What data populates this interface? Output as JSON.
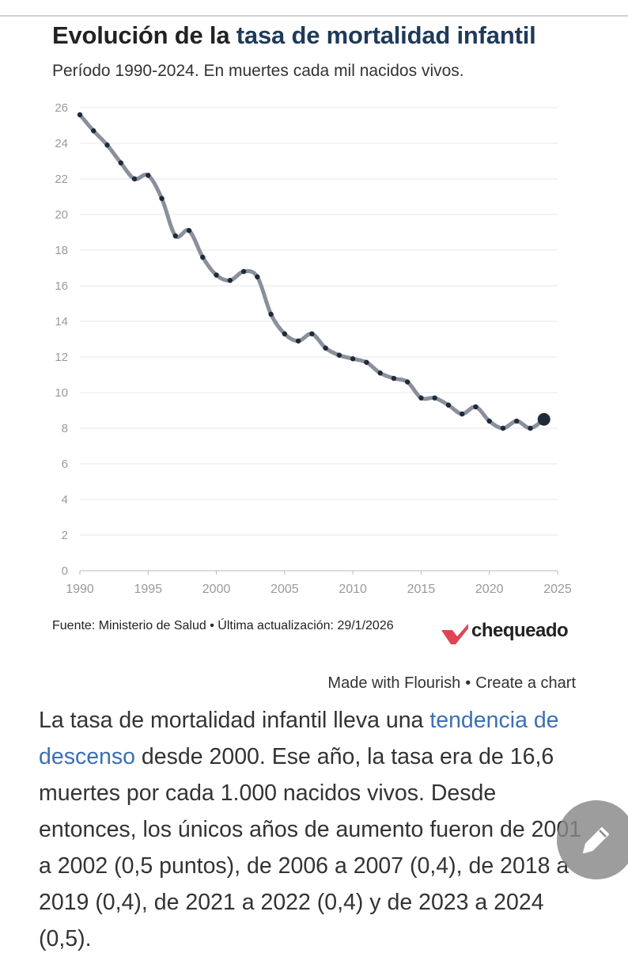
{
  "chart_data": {
    "type": "line",
    "title_prefix": "Evolución de la ",
    "title_highlight": "tasa de mortalidad infantil",
    "subtitle": "Período 1990-2024. En muertes cada mil nacidos vivos.",
    "x": [
      1990,
      1991,
      1992,
      1993,
      1994,
      1995,
      1996,
      1997,
      1998,
      1999,
      2000,
      2001,
      2002,
      2003,
      2004,
      2005,
      2006,
      2007,
      2008,
      2009,
      2010,
      2011,
      2012,
      2013,
      2014,
      2015,
      2016,
      2017,
      2018,
      2019,
      2020,
      2021,
      2022,
      2023,
      2024
    ],
    "y": [
      25.6,
      24.7,
      23.9,
      22.9,
      22.0,
      22.2,
      20.9,
      18.8,
      19.1,
      17.6,
      16.6,
      16.3,
      16.8,
      16.5,
      14.4,
      13.3,
      12.9,
      13.3,
      12.5,
      12.1,
      11.9,
      11.7,
      11.1,
      10.8,
      10.6,
      9.7,
      9.7,
      9.3,
      8.8,
      9.2,
      8.4,
      8.0,
      8.4,
      8.0,
      8.5
    ],
    "xlim": [
      1990,
      2025
    ],
    "ylim": [
      0,
      26
    ],
    "x_ticks": [
      "1990",
      "1995",
      "2000",
      "2005",
      "2010",
      "2015",
      "2020",
      "2025"
    ],
    "y_ticks": [
      "0",
      "2",
      "4",
      "6",
      "8",
      "10",
      "12",
      "14",
      "16",
      "18",
      "20",
      "22",
      "24",
      "26"
    ],
    "grid": true,
    "line_color": "#8a909b",
    "point_color": "#1f2a3a"
  },
  "source": {
    "text": "Fuente: Ministerio de Salud • Última actualización: 29/1/2026"
  },
  "logo": {
    "text": "chequeado",
    "mark_color": "#e04453"
  },
  "flourish": {
    "made_with": "Made with Flourish",
    "separator": "•",
    "create": "Create a chart"
  },
  "article": {
    "part1": "La tasa de mortalidad infantil lleva una ",
    "link": "tendencia de descenso",
    "part2": " desde 2000. Ese año, la tasa era de 16,6 muertes por cada 1.000 nacidos vivos. Desde entonces, los únicos años de aumento fueron de 2001 a 2002 (0,5 puntos), de 2006 a 2007 (0,4), de 2018 a 2019 (0,4), de 2021 a 2022 (0,4) y de 2023 a 2024 (0,5).",
    "link_color": "#3b6fb6"
  },
  "edit_button": {
    "icon": "pencil-icon"
  }
}
